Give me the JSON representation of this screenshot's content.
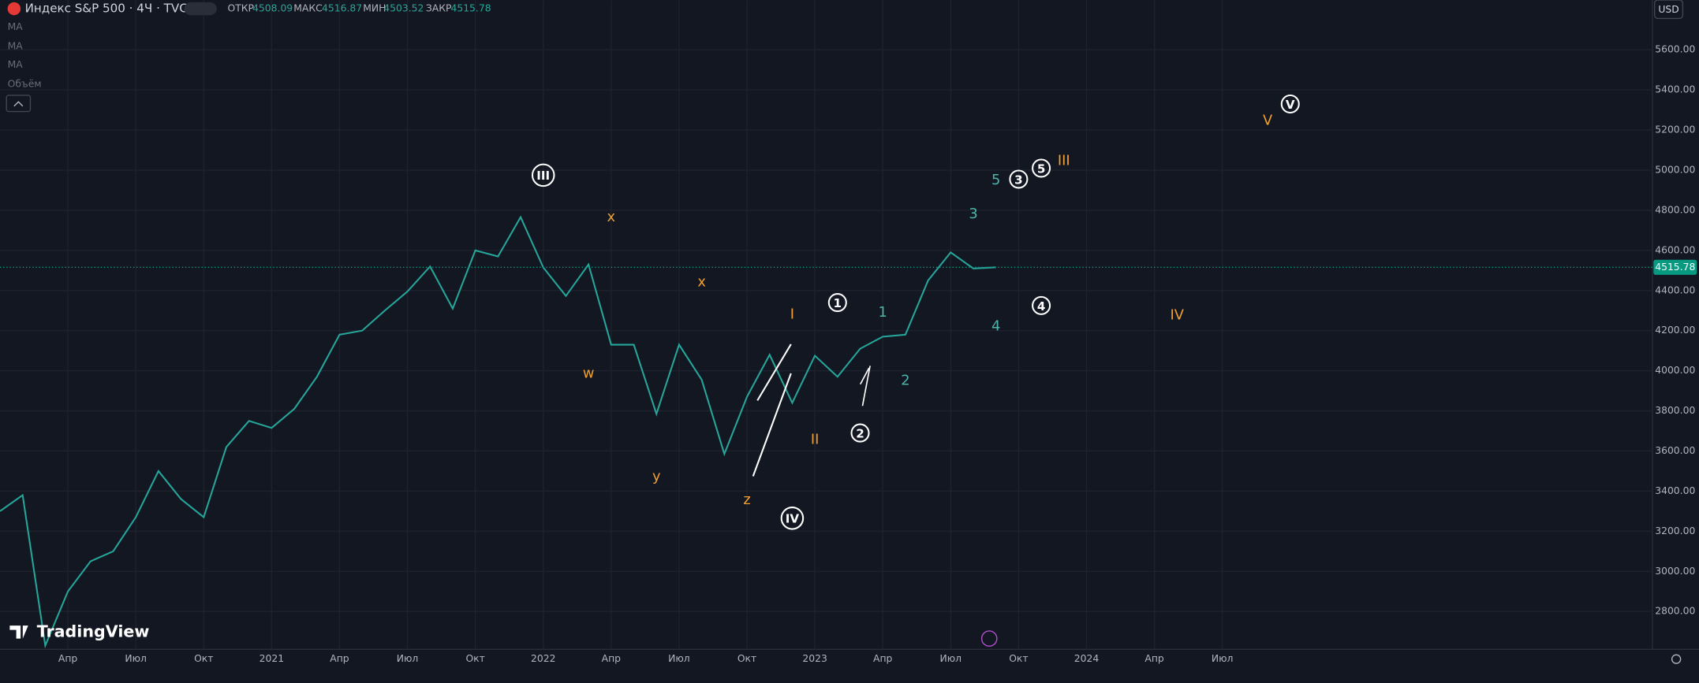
{
  "header": {
    "symbol": "Индекс S&P 500 · 4Ч · TVC",
    "ohlc": [
      {
        "label": "ОТКР",
        "value": "4508.09"
      },
      {
        "label": "МАКС",
        "value": "4516.87"
      },
      {
        "label": "МИН",
        "value": "4503.52"
      },
      {
        "label": "ЗАКР",
        "value": "4515.78"
      }
    ],
    "currency": "USD"
  },
  "indicators": [
    "MA",
    "MA",
    "MA",
    "Объём"
  ],
  "logo": "TradingView",
  "chart_data": {
    "type": "line",
    "color": "#26a69a",
    "x": [
      "2020-01",
      "2020-02",
      "2020-03",
      "2020-04",
      "2020-05",
      "2020-06",
      "2020-07",
      "2020-08",
      "2020-09",
      "2020-10",
      "2020-11",
      "2020-12",
      "2021-01",
      "2021-02",
      "2021-03",
      "2021-04",
      "2021-05",
      "2021-06",
      "2021-07",
      "2021-08",
      "2021-09",
      "2021-10",
      "2021-11",
      "2021-12",
      "2022-01",
      "2022-02",
      "2022-03",
      "2022-04",
      "2022-05",
      "2022-06",
      "2022-07",
      "2022-08",
      "2022-09",
      "2022-10",
      "2022-11",
      "2022-12",
      "2023-01",
      "2023-02",
      "2023-03",
      "2023-04",
      "2023-05",
      "2023-06",
      "2023-07",
      "2023-08",
      "2023-09"
    ],
    "values": [
      3300,
      3380,
      2630,
      2900,
      3050,
      3100,
      3270,
      3500,
      3360,
      3270,
      3620,
      3750,
      3715,
      3810,
      3970,
      4180,
      4200,
      4300,
      4395,
      4520,
      4310,
      4600,
      4570,
      4766,
      4515,
      4373,
      4530,
      4130,
      4130,
      3785,
      4130,
      3955,
      3585,
      3870,
      4080,
      3840,
      4075,
      3970,
      4110,
      4170,
      4180,
      4450,
      4590,
      4510,
      4515.78
    ],
    "xlim": [
      "2020-01",
      "2026-02"
    ],
    "xticks": [
      {
        "value": "2020-04",
        "label": "Апр"
      },
      {
        "value": "2020-07",
        "label": "Июл"
      },
      {
        "value": "2020-10",
        "label": "Окт"
      },
      {
        "value": "2021-01",
        "label": "2021"
      },
      {
        "value": "2021-04",
        "label": "Апр"
      },
      {
        "value": "2021-07",
        "label": "Июл"
      },
      {
        "value": "2021-10",
        "label": "Окт"
      },
      {
        "value": "2022-01",
        "label": "2022"
      },
      {
        "value": "2022-04",
        "label": "Апр"
      },
      {
        "value": "2022-07",
        "label": "Июл"
      },
      {
        "value": "2022-10",
        "label": "Окт"
      },
      {
        "value": "2023-01",
        "label": "2023"
      },
      {
        "value": "2023-04",
        "label": "Апр"
      },
      {
        "value": "2023-07",
        "label": "Июл"
      },
      {
        "value": "2023-10",
        "label": "Окт"
      },
      {
        "value": "2024-01",
        "label": "2024"
      },
      {
        "value": "2024-04",
        "label": "Апр"
      },
      {
        "value": "2024-07",
        "label": "Июл"
      }
    ],
    "ylim": [
      2611,
      5848
    ],
    "yticks": [
      {
        "value": 2800,
        "label": "2800.00"
      },
      {
        "value": 3000,
        "label": "3000.00"
      },
      {
        "value": 3200,
        "label": "3200.00"
      },
      {
        "value": 3400,
        "label": "3400.00"
      },
      {
        "value": 3600,
        "label": "3600.00"
      },
      {
        "value": 3800,
        "label": "3800.00"
      },
      {
        "value": 4000,
        "label": "4000.00"
      },
      {
        "value": 4200,
        "label": "4200.00"
      },
      {
        "value": 4400,
        "label": "4400.00"
      },
      {
        "value": 4600,
        "label": "4600.00"
      },
      {
        "value": 4800,
        "label": "4800.00"
      },
      {
        "value": 5000,
        "label": "5000.00"
      },
      {
        "value": 5200,
        "label": "5200.00"
      },
      {
        "value": 5400,
        "label": "5400.00"
      },
      {
        "value": 5600,
        "label": "5600.00"
      }
    ],
    "grid": true,
    "last_price": {
      "value": 4515.78,
      "label": "4515.78",
      "color": "#089981"
    },
    "annotations": [
      {
        "text": "III",
        "x": "2022-01",
        "y": 4975,
        "color": "#ffffff",
        "circled": true
      },
      {
        "text": "x",
        "x": "2022-04",
        "y": 4770,
        "color": "#f0a030",
        "circled": false
      },
      {
        "text": "x",
        "x": "2022-08",
        "y": 4445,
        "color": "#f0a030",
        "circled": false
      },
      {
        "text": "w",
        "x": "2022-03",
        "y": 3990,
        "color": "#f0a030",
        "circled": false
      },
      {
        "text": "y",
        "x": "2022-06",
        "y": 3475,
        "color": "#f0a030",
        "circled": false
      },
      {
        "text": "z",
        "x": "2022-10",
        "y": 3360,
        "color": "#f0a030",
        "circled": false
      },
      {
        "text": "IV",
        "x": "2022-12",
        "y": 3265,
        "color": "#ffffff",
        "circled": true
      },
      {
        "text": "I",
        "x": "2022-12",
        "y": 4285,
        "color": "#f0a030",
        "circled": false
      },
      {
        "text": "II",
        "x": "2023-01",
        "y": 3660,
        "color": "#f0a030",
        "circled": false
      },
      {
        "text": "1",
        "x": "2023-02",
        "y": 4340,
        "color": "#ffffff",
        "circled": true
      },
      {
        "text": "2",
        "x": "2023-03",
        "y": 3690,
        "color": "#ffffff",
        "circled": true
      },
      {
        "text": "1",
        "x": "2023-04",
        "y": 4295,
        "color": "#4db6ac",
        "circled": false
      },
      {
        "text": "2",
        "x": "2023-05",
        "y": 3955,
        "color": "#4db6ac",
        "circled": false
      },
      {
        "text": "3",
        "x": "2023-08",
        "y": 4785,
        "color": "#4db6ac",
        "circled": false
      },
      {
        "text": "4",
        "x": "2023-09",
        "y": 4225,
        "color": "#4db6ac",
        "circled": false
      },
      {
        "text": "5",
        "x": "2023-09",
        "y": 4955,
        "color": "#4db6ac",
        "circled": false
      },
      {
        "text": "3",
        "x": "2023-10",
        "y": 4955,
        "color": "#ffffff",
        "circled": true
      },
      {
        "text": "4",
        "x": "2023-11",
        "y": 4325,
        "color": "#ffffff",
        "circled": true
      },
      {
        "text": "5",
        "x": "2023-11",
        "y": 5010,
        "color": "#ffffff",
        "circled": true
      },
      {
        "text": "III",
        "x": "2023-12",
        "y": 5050,
        "color": "#f0a030",
        "circled": false
      },
      {
        "text": "IV",
        "x": "2024-05",
        "y": 4280,
        "color": "#f0a030",
        "circled": false
      },
      {
        "text": "V",
        "x": "2024-09",
        "y": 5250,
        "color": "#f0a030",
        "circled": false
      },
      {
        "text": "V",
        "x": "2024-10",
        "y": 5330,
        "color": "#ffffff",
        "circled": true
      }
    ]
  }
}
